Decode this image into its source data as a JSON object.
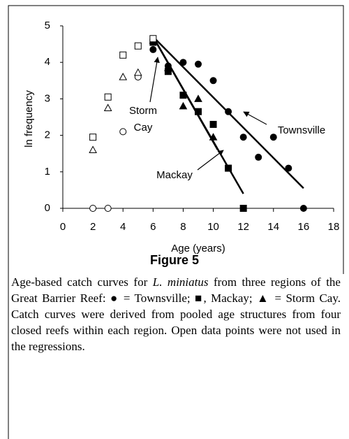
{
  "chart_data": {
    "type": "scatter",
    "xlabel": "Age (years)",
    "ylabel": "ln frequency",
    "xlim": [
      0,
      18
    ],
    "xticks": [
      0,
      2,
      4,
      6,
      8,
      10,
      12,
      14,
      16,
      18
    ],
    "ylim": [
      0,
      5
    ],
    "yticks": [
      0,
      1,
      2,
      3,
      4,
      5
    ],
    "series": [
      {
        "marker": "circle",
        "filled": true,
        "color": "#000000",
        "x": [
          6,
          7,
          8,
          9,
          10,
          11,
          12,
          13,
          14,
          15,
          16
        ],
        "values": [
          4.35,
          3.9,
          4.0,
          3.95,
          3.5,
          2.65,
          1.95,
          1.4,
          1.95,
          1.1,
          0
        ]
      },
      {
        "marker": "square",
        "filled": true,
        "color": "#000000",
        "x": [
          6,
          7,
          8,
          9,
          10,
          11,
          12
        ],
        "values": [
          4.55,
          3.75,
          3.1,
          2.65,
          2.3,
          1.1,
          0
        ]
      },
      {
        "marker": "triangle",
        "filled": true,
        "color": "#000000",
        "x": [
          6,
          7,
          8,
          9,
          10
        ],
        "values": [
          4.6,
          3.85,
          2.8,
          3.0,
          1.95
        ]
      },
      {
        "marker": "circle",
        "filled": false,
        "color": "#000000",
        "x": [
          2,
          3,
          4,
          5
        ],
        "values": [
          0,
          0,
          2.1,
          3.6
        ]
      },
      {
        "marker": "square",
        "filled": false,
        "color": "#000000",
        "x": [
          2,
          3,
          4,
          5,
          6
        ],
        "values": [
          1.95,
          3.05,
          4.2,
          4.45,
          4.65
        ]
      },
      {
        "marker": "triangle",
        "filled": false,
        "color": "#000000",
        "x": [
          2,
          3,
          4,
          5
        ],
        "values": [
          1.6,
          2.75,
          3.6,
          3.72
        ]
      }
    ],
    "fits": [
      {
        "x": [
          6,
          16
        ],
        "values": [
          4.7,
          0.55
        ]
      },
      {
        "x": [
          6,
          12
        ],
        "values": [
          4.7,
          0.4
        ]
      },
      {
        "x": [
          6,
          10.3
        ],
        "values": [
          4.7,
          1.6
        ]
      }
    ],
    "annotations": [
      "Townsville",
      "Mackay",
      "Storm",
      "Cay"
    ]
  },
  "figure": {
    "label": "Figure 5",
    "caption": [
      "Age-based catch curves for ",
      "L. miniatus",
      " from three regions of the Great Barrier Reef: ● = Townsville; ■, Mackay; ▲ = Storm Cay. Catch curves were derived from pooled age structures from four closed reefs within each region. Open data points were not used in the regressions."
    ]
  }
}
